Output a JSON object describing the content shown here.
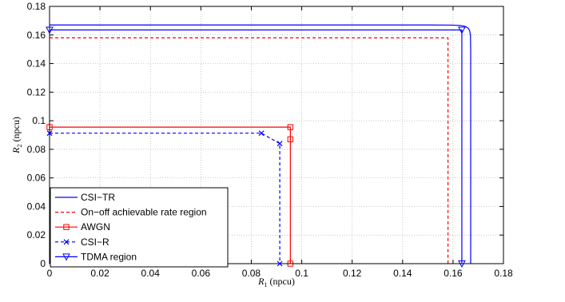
{
  "chart_data": {
    "type": "line",
    "xlabel": {
      "var": "R",
      "sub": "1",
      "unit": " (npcu)"
    },
    "ylabel": {
      "var": "R",
      "sub": "2",
      "unit": " (npcu)"
    },
    "xlim": [
      0,
      0.18
    ],
    "ylim": [
      0,
      0.18
    ],
    "xticks": [
      "0",
      "0.02",
      "0.04",
      "0.06",
      "0.08",
      "0.1",
      "0.12",
      "0.14",
      "0.16",
      "0.18"
    ],
    "yticks": [
      "0",
      "0.02",
      "0.04",
      "0.06",
      "0.08",
      "0.1",
      "0.12",
      "0.14",
      "0.16",
      "0.18"
    ],
    "grid": true,
    "legend_position": "bottom-left",
    "series": [
      {
        "name": "CSI−TR",
        "color": "#0000ff",
        "dash": "solid",
        "marker": "none",
        "x": [
          0,
          0.15,
          0.16,
          0.163,
          0.1648,
          0.166,
          0.1666,
          0.1669,
          0.167,
          0.167
        ],
        "y": [
          0.167,
          0.167,
          0.1669,
          0.1666,
          0.166,
          0.1648,
          0.163,
          0.16,
          0.15,
          0
        ]
      },
      {
        "name": "On−off achievable rate region",
        "color": "#ff0000",
        "dash": "dashed",
        "marker": "none",
        "x": [
          0,
          0.158,
          0.158
        ],
        "y": [
          0.158,
          0.158,
          0
        ]
      },
      {
        "name": "AWGN",
        "color": "#ff0000",
        "dash": "solid",
        "marker": "square",
        "x": [
          0,
          0.0955,
          0.0955,
          0.0955,
          0.0955
        ],
        "y": [
          0.0955,
          0.0955,
          0.087,
          0.087,
          0
        ],
        "marker_x": [
          0,
          0.0955,
          0.0955,
          0.0955
        ],
        "marker_y": [
          0.0955,
          0.0955,
          0.087,
          0
        ]
      },
      {
        "name": "CSI−R",
        "color": "#0000ff",
        "dash": "dashed",
        "marker": "x",
        "x": [
          0,
          0.084,
          0.0913,
          0.0913
        ],
        "y": [
          0.0913,
          0.0913,
          0.084,
          0
        ],
        "marker_x": [
          0,
          0.084,
          0.0913,
          0.0913
        ],
        "marker_y": [
          0.0913,
          0.0913,
          0.084,
          0
        ]
      },
      {
        "name": "TDMA region",
        "color": "#0000ff",
        "dash": "solid",
        "marker": "triangle-down",
        "x": [
          0,
          0.1635,
          0.1635
        ],
        "y": [
          0.1635,
          0.1635,
          0
        ],
        "marker_x": [
          0,
          0.1635,
          0.1635
        ],
        "marker_y": [
          0.1635,
          0.1635,
          0
        ]
      }
    ]
  }
}
